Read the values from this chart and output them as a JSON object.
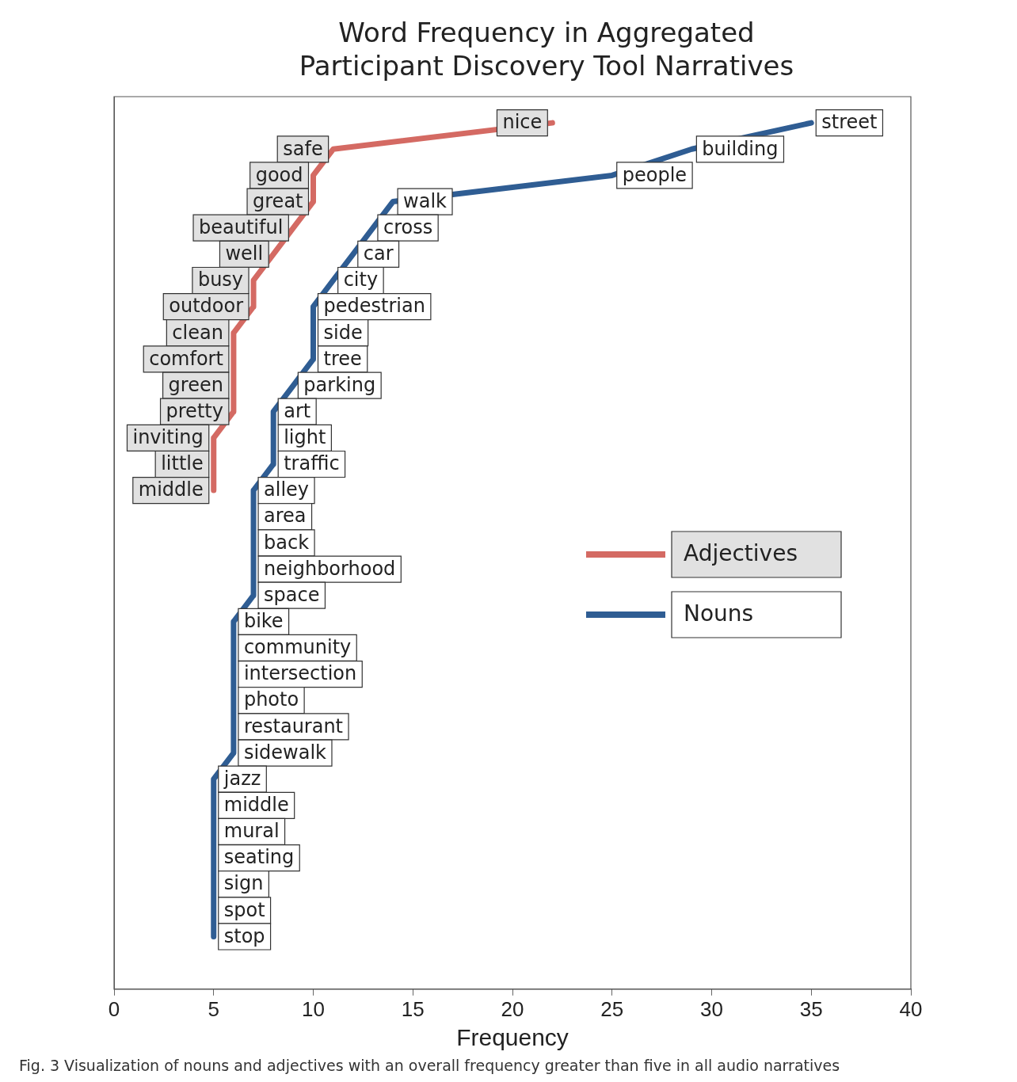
{
  "chart_data": {
    "type": "line",
    "orientation": "horizontal",
    "title": "Word Frequency in Aggregated Participant Discovery Tool Narratives",
    "xlabel": "Frequency",
    "annotations": [
      "Fig. 3 Visualization of nouns and adjectives with an overall frequency greater than five in all audio narratives"
    ],
    "categories": [
      null,
      null,
      null,
      null,
      null,
      null,
      null,
      null,
      null,
      null,
      null,
      null,
      null,
      null,
      null,
      null,
      null,
      null,
      null,
      null,
      null,
      null,
      null,
      null,
      null,
      null,
      null,
      null,
      null,
      null,
      null,
      null
    ],
    "series": [
      {
        "name": "Adjectives",
        "color": "#d46a63",
        "values": [
          22,
          11,
          10,
          10,
          9,
          8,
          7,
          7,
          6,
          6,
          6,
          6,
          5,
          5,
          5,
          null,
          null,
          null,
          null,
          null,
          null,
          null,
          null,
          null,
          null,
          null,
          null,
          null,
          null,
          null,
          null,
          null
        ],
        "value_labels": [
          "nice",
          "safe",
          "good",
          "great",
          "beautiful",
          "well",
          "busy",
          "outdoor",
          "clean",
          "comfort",
          "green",
          "pretty",
          "inviting",
          "little",
          "middle",
          null,
          null,
          null,
          null,
          null,
          null,
          null,
          null,
          null,
          null,
          null,
          null,
          null,
          null,
          null,
          null,
          null
        ]
      },
      {
        "name": "Nouns",
        "color": "#2f5d93",
        "values": [
          35,
          29,
          25,
          14,
          13,
          12,
          11,
          10,
          10,
          10,
          9,
          8,
          8,
          8,
          7,
          7,
          7,
          7,
          7,
          6,
          6,
          6,
          6,
          6,
          6,
          5,
          5,
          5,
          5,
          5,
          5,
          5
        ],
        "value_labels": [
          "street",
          "building",
          "people",
          "walk",
          "cross",
          "car",
          "city",
          "pedestrian",
          "side",
          "tree",
          "parking",
          "art",
          "light",
          "traffic",
          "alley",
          "area",
          "back",
          "neighborhood",
          "space",
          "bike",
          "community",
          "intersection",
          "photo",
          "restaurant",
          "sidewalk",
          "jazz",
          "middle",
          "mural",
          "seating",
          "sign",
          "spot",
          "stop"
        ]
      }
    ],
    "xlim": [
      0,
      40
    ],
    "xticks": [
      0,
      5,
      10,
      15,
      20,
      25,
      30,
      35,
      40
    ],
    "tick_labels": "x",
    "legend": "right",
    "grid": false,
    "line_style": "solid",
    "marker": "none"
  }
}
